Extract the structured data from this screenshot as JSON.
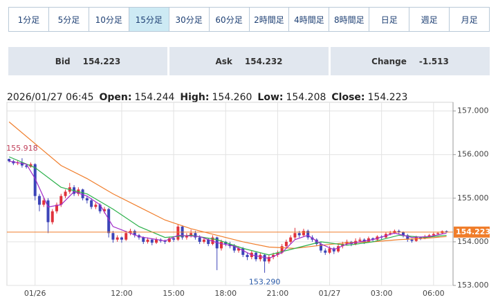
{
  "tabs": {
    "items": [
      "1分足",
      "5分足",
      "10分足",
      "15分足",
      "30分足",
      "60分足",
      "2時間足",
      "4時間足",
      "8時間足",
      "日足",
      "週足",
      "月足"
    ],
    "selected": 3
  },
  "quote": [
    {
      "label": "Bid",
      "value": "154.223"
    },
    {
      "label": "Ask",
      "value": "154.232"
    },
    {
      "label": "Change",
      "value": "-1.513"
    }
  ],
  "ohlc_header": {
    "datetime": "2026/01/27 06:45",
    "fields": [
      {
        "label": "Open:",
        "value": "154.244"
      },
      {
        "label": "High:",
        "value": "154.260"
      },
      {
        "label": "Low:",
        "value": "154.208"
      },
      {
        "label": "Close:",
        "value": "154.223"
      }
    ]
  },
  "chart_data": {
    "type": "candlestick",
    "up_color": "#e0323c",
    "down_color": "#3c44b8",
    "grid": true,
    "xlim": [
      -0.5,
      102.5
    ],
    "ylim": [
      153,
      157.2
    ],
    "xticks": [
      {
        "value": 6,
        "label": "01/26"
      },
      {
        "value": 26,
        "label": "12:00"
      },
      {
        "value": 38,
        "label": "15:00"
      },
      {
        "value": 50,
        "label": "18:00"
      },
      {
        "value": 62,
        "label": "21:00"
      },
      {
        "value": 74,
        "label": "01/27"
      },
      {
        "value": 86,
        "label": "03:00"
      },
      {
        "value": 98,
        "label": "06:00"
      }
    ],
    "yticks": [
      {
        "value": 153,
        "label": "153.000"
      },
      {
        "value": 154,
        "label": "154.000"
      },
      {
        "value": 155,
        "label": "155.000"
      },
      {
        "value": 156,
        "label": "156.000"
      },
      {
        "value": 157,
        "label": "157.000"
      }
    ],
    "x": [
      0,
      1,
      2,
      3,
      4,
      5,
      6,
      7,
      8,
      9,
      10,
      11,
      12,
      13,
      14,
      15,
      16,
      17,
      18,
      19,
      20,
      21,
      22,
      23,
      24,
      25,
      26,
      27,
      28,
      29,
      30,
      31,
      32,
      33,
      34,
      35,
      36,
      37,
      38,
      39,
      40,
      41,
      42,
      43,
      44,
      45,
      46,
      47,
      48,
      49,
      50,
      51,
      52,
      53,
      54,
      55,
      56,
      57,
      58,
      59,
      60,
      61,
      62,
      63,
      64,
      65,
      66,
      67,
      68,
      69,
      70,
      71,
      72,
      73,
      74,
      75,
      76,
      77,
      78,
      79,
      80,
      81,
      82,
      83,
      84,
      85,
      86,
      87,
      88,
      89,
      90,
      91,
      92,
      93,
      94,
      95,
      96,
      97,
      98,
      99,
      100,
      101
    ],
    "open": [
      155.9,
      155.85,
      155.8,
      155.82,
      155.75,
      155.72,
      155.78,
      155.05,
      154.85,
      154.95,
      154.45,
      154.7,
      154.85,
      155.05,
      155.15,
      155.25,
      155.1,
      155.2,
      155.0,
      154.95,
      154.8,
      154.85,
      154.7,
      154.75,
      154.2,
      154.05,
      154.1,
      154.05,
      154.2,
      154.25,
      154.15,
      154.1,
      154.0,
      154.05,
      153.98,
      154.05,
      154.02,
      154.0,
      154.08,
      154.05,
      154.35,
      154.1,
      154.15,
      154.2,
      154.1,
      154.0,
      154.05,
      153.95,
      154.1,
      153.85,
      154.0,
      153.95,
      153.9,
      153.8,
      153.85,
      153.7,
      153.65,
      153.75,
      153.6,
      153.7,
      153.55,
      153.65,
      153.7,
      153.75,
      153.9,
      154.0,
      154.1,
      154.2,
      154.15,
      154.25,
      154.1,
      154.05,
      153.95,
      153.8,
      153.75,
      153.85,
      153.78,
      153.9,
      153.95,
      154.0,
      153.95,
      154.02,
      154.05,
      154.0,
      154.08,
      154.05,
      154.12,
      154.1,
      154.18,
      154.2,
      154.25,
      154.22,
      154.15,
      154.05,
      154.02,
      154.1,
      154.08,
      154.12,
      154.15,
      154.18,
      154.2,
      154.244
    ],
    "high": [
      155.91,
      155.88,
      155.86,
      155.918,
      155.78,
      155.82,
      155.8,
      155.1,
      155.0,
      155.0,
      154.75,
      154.9,
      155.1,
      155.2,
      155.35,
      155.3,
      155.25,
      155.22,
      155.05,
      155.0,
      154.9,
      154.88,
      154.8,
      154.78,
      154.25,
      154.15,
      154.12,
      154.25,
      154.3,
      154.28,
      154.18,
      154.12,
      154.1,
      154.08,
      154.1,
      154.08,
      154.05,
      154.12,
      154.1,
      154.4,
      154.38,
      154.2,
      154.28,
      154.25,
      154.15,
      154.1,
      154.08,
      154.15,
      154.12,
      154.05,
      154.02,
      154.0,
      153.95,
      153.9,
      153.88,
      153.75,
      153.8,
      153.78,
      153.75,
      153.72,
      153.7,
      153.75,
      153.8,
      153.95,
      154.05,
      154.15,
      154.32,
      154.25,
      154.3,
      154.28,
      154.15,
      154.08,
      154.0,
      153.85,
      153.9,
      153.88,
      153.95,
      154.0,
      154.05,
      154.02,
      154.08,
      154.1,
      154.08,
      154.12,
      154.1,
      154.15,
      154.15,
      154.22,
      154.25,
      154.28,
      154.28,
      154.24,
      154.18,
      154.08,
      154.14,
      154.12,
      154.16,
      154.18,
      154.21,
      154.23,
      154.26,
      154.26
    ],
    "low": [
      155.82,
      155.76,
      155.76,
      155.7,
      155.68,
      155.7,
      154.95,
      154.7,
      154.8,
      154.2,
      154.4,
      154.65,
      154.8,
      155.0,
      155.1,
      155.05,
      155.05,
      154.95,
      154.88,
      154.75,
      154.75,
      154.65,
      154.65,
      154.1,
      153.98,
      154.0,
      153.98,
      154.02,
      154.15,
      154.1,
      154.05,
      153.95,
      153.96,
      153.92,
      153.95,
      153.98,
      153.95,
      153.98,
      154.0,
      154.02,
      154.05,
      154.05,
      154.1,
      154.05,
      153.95,
      153.96,
      153.9,
      153.92,
      153.35,
      153.8,
      153.9,
      153.85,
      153.75,
      153.75,
      153.65,
      153.58,
      153.6,
      153.55,
      153.55,
      153.29,
      153.5,
      153.6,
      153.65,
      153.72,
      153.85,
      153.95,
      154.05,
      154.1,
      154.12,
      154.05,
      154.0,
      153.9,
      153.75,
      153.7,
      153.72,
      153.72,
      153.75,
      153.85,
      153.92,
      153.9,
      153.92,
      153.98,
      153.95,
      153.98,
      154.0,
      154.02,
      154.05,
      154.08,
      154.15,
      154.18,
      154.18,
      154.1,
      154.0,
      153.98,
      154.0,
      154.04,
      154.06,
      154.1,
      154.12,
      154.15,
      154.18,
      154.208
    ],
    "close": [
      155.85,
      155.8,
      155.82,
      155.75,
      155.72,
      155.78,
      155.05,
      154.85,
      154.95,
      154.45,
      154.7,
      154.85,
      155.05,
      155.15,
      155.25,
      155.1,
      155.2,
      155.0,
      154.95,
      154.8,
      154.85,
      154.7,
      154.75,
      154.2,
      154.05,
      154.1,
      154.05,
      154.2,
      154.25,
      154.15,
      154.1,
      154.0,
      154.05,
      153.98,
      154.05,
      154.02,
      154.0,
      154.08,
      154.05,
      154.35,
      154.1,
      154.15,
      154.2,
      154.1,
      154.0,
      154.05,
      153.95,
      154.1,
      153.85,
      154.0,
      153.95,
      153.9,
      153.8,
      153.85,
      153.7,
      153.65,
      153.75,
      153.6,
      153.7,
      153.55,
      153.65,
      153.7,
      153.75,
      153.9,
      154.0,
      154.1,
      154.2,
      154.15,
      154.25,
      154.1,
      154.05,
      153.95,
      153.8,
      153.75,
      153.85,
      153.78,
      153.9,
      153.95,
      154.0,
      153.95,
      154.02,
      154.05,
      154.0,
      154.08,
      154.05,
      154.12,
      154.1,
      154.18,
      154.2,
      154.25,
      154.22,
      154.15,
      154.05,
      154.02,
      154.1,
      154.08,
      154.12,
      154.15,
      154.18,
      154.2,
      154.244,
      154.223
    ],
    "lines": [
      {
        "color": "#f07d2a",
        "x": [
          0,
          6,
          12,
          18,
          24,
          30,
          36,
          42,
          48,
          54,
          60,
          66,
          72,
          78,
          84,
          90,
          96,
          101
        ],
        "values": [
          156.75,
          156.25,
          155.75,
          155.45,
          155.1,
          154.8,
          154.5,
          154.3,
          154.15,
          154.0,
          153.88,
          153.85,
          153.92,
          153.98,
          154.0,
          154.05,
          154.08,
          154.12
        ]
      },
      {
        "color": "#2bb04a",
        "x": [
          0,
          6,
          12,
          18,
          24,
          30,
          36,
          42,
          48,
          54,
          60,
          66,
          72,
          78,
          84,
          90,
          96,
          101
        ],
        "values": [
          155.95,
          155.7,
          155.25,
          155.1,
          154.75,
          154.35,
          154.1,
          154.15,
          154.05,
          153.85,
          153.7,
          153.85,
          154.0,
          153.92,
          154.0,
          154.15,
          154.1,
          154.15
        ]
      },
      {
        "color": "#a12ac8",
        "x": [
          0,
          4,
          6,
          9,
          12,
          15,
          18,
          21,
          24,
          30,
          36,
          39,
          44,
          48,
          52,
          56,
          60,
          63,
          66,
          69,
          72,
          75,
          78,
          84,
          89,
          93,
          97,
          101
        ],
        "values": [
          155.85,
          155.78,
          155.45,
          154.8,
          154.85,
          155.15,
          155.05,
          154.85,
          154.35,
          154.12,
          154.02,
          154.15,
          154.12,
          153.98,
          153.9,
          153.7,
          153.62,
          153.75,
          154.05,
          154.15,
          153.95,
          153.82,
          153.95,
          154.05,
          154.2,
          154.1,
          154.12,
          154.2
        ]
      }
    ],
    "last_price": {
      "value": 154.223,
      "label": "154.223",
      "color": "#f07d2a"
    },
    "annotations": [
      {
        "x": 3,
        "value": 155.918,
        "label": "155.918",
        "color": "#c0405a"
      },
      {
        "x": 59,
        "value": 153.29,
        "label": "153.290",
        "color": "#2a5aa8"
      }
    ]
  }
}
